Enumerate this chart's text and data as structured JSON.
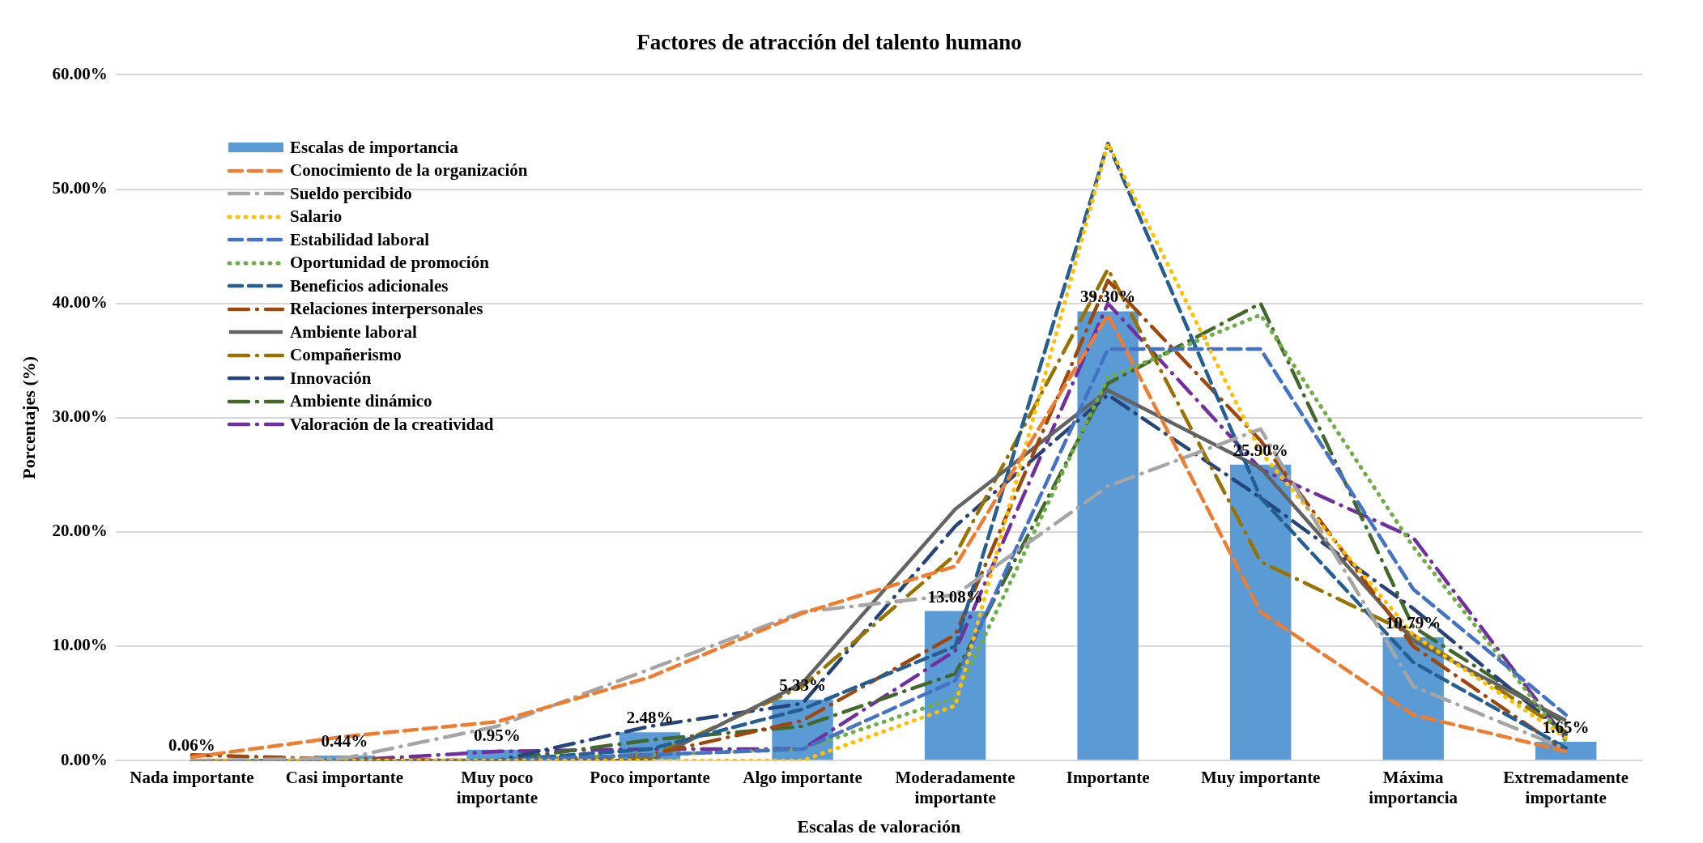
{
  "chart_data": {
    "type": "bar",
    "title": "Factores de atracción del talento humano",
    "xlabel": "Escalas de valoración",
    "ylabel": "Porcentajes (%)",
    "categories": [
      "Nada importante",
      "Casi importante",
      "Muy poco importante",
      "Poco importante",
      "Algo importante",
      "Moderadamente importante",
      "Importante",
      "Muy importante",
      "Máxima importancia",
      "Extremadamente importante"
    ],
    "ylim": [
      0,
      60
    ],
    "yticks": [
      {
        "value": 0,
        "label": "0.00%"
      },
      {
        "value": 10,
        "label": "10.00%"
      },
      {
        "value": 20,
        "label": "20.00%"
      },
      {
        "value": 30,
        "label": "30.00%"
      },
      {
        "value": 40,
        "label": "40.00%"
      },
      {
        "value": 50,
        "label": "50.00%"
      },
      {
        "value": 60,
        "label": "60.00%"
      }
    ],
    "grid": "y",
    "legend": "top left",
    "series": [
      {
        "name": "Escalas de importancia",
        "color": "#5b9bd5",
        "values": [
          0.06,
          0.44,
          0.95,
          2.48,
          5.33,
          13.08,
          39.3,
          25.9,
          10.79,
          1.65
        ],
        "value_labels": [
          "0.06%",
          "0.44%",
          "0.95%",
          "2.48%",
          "5.33%",
          "13.08%",
          "39.30%",
          "25.90%",
          "10.79%",
          "1.65%"
        ]
      },
      {
        "name": "Conocimiento de la organización",
        "type": "line",
        "line_style": "dashed",
        "color": "#ed7d31",
        "values": [
          0.3,
          2.1,
          3.4,
          7.3,
          12.9,
          17,
          39,
          13,
          4,
          0.8
        ]
      },
      {
        "name": "Sueldo percibido",
        "type": "line",
        "line_style": "dashdot",
        "color": "#a5a5a5",
        "values": [
          0,
          0.2,
          3,
          8,
          13,
          14.5,
          24,
          29,
          6.5,
          1
        ]
      },
      {
        "name": "Salario",
        "type": "line",
        "line_style": "dotted",
        "color": "#ffc000",
        "values": [
          0,
          0,
          0,
          0,
          0,
          4.8,
          54,
          27,
          11,
          2
        ]
      },
      {
        "name": "Estabilidad laboral",
        "type": "line",
        "line_style": "dashed",
        "color": "#4472c4",
        "values": [
          0,
          0,
          0,
          0.5,
          1,
          7,
          36,
          36,
          15,
          4
        ]
      },
      {
        "name": "Oportunidad de promoción",
        "type": "line",
        "line_style": "dotted",
        "color": "#70ad47",
        "values": [
          0,
          0,
          0,
          0.5,
          1,
          5.5,
          33.5,
          39,
          18.7,
          1.7
        ]
      },
      {
        "name": "Beneficios adicionales",
        "type": "line",
        "line_style": "dashed",
        "color": "#255e91",
        "values": [
          0,
          0,
          0,
          1,
          4.5,
          10,
          54,
          23,
          8.6,
          1.1
        ]
      },
      {
        "name": "Relaciones interpersonales",
        "type": "line",
        "line_style": "dashdot",
        "color": "#9e480e",
        "values": [
          0.5,
          0.1,
          0,
          0.5,
          3.5,
          11,
          42,
          28,
          10,
          0.8
        ]
      },
      {
        "name": "Ambiente laboral",
        "type": "line",
        "line_style": "solid",
        "color": "#636363",
        "values": [
          0,
          0,
          0,
          0,
          6.8,
          22,
          32.4,
          25.6,
          10.5,
          3.5
        ]
      },
      {
        "name": "Compañerismo",
        "type": "line",
        "line_style": "dashdot",
        "color": "#997300",
        "values": [
          0,
          0,
          0,
          0.3,
          6.5,
          18,
          43,
          17.4,
          11,
          2.5
        ]
      },
      {
        "name": "Innovación",
        "type": "line",
        "line_style": "dashdot",
        "color": "#264478",
        "values": [
          0,
          0,
          0,
          3,
          5,
          20.5,
          32,
          23,
          13.3,
          2.3
        ]
      },
      {
        "name": "Ambiente dinámico",
        "type": "line",
        "line_style": "dashdot",
        "color": "#43682b",
        "values": [
          0,
          0,
          0,
          1.8,
          3,
          7.6,
          33,
          40,
          11.7,
          3.2
        ]
      },
      {
        "name": "Valoración de la creatividad",
        "type": "line",
        "line_style": "dashdot",
        "color": "#7030a0",
        "values": [
          0,
          0,
          0.8,
          1,
          1,
          9.6,
          40,
          25.5,
          19.5,
          1.9
        ]
      }
    ]
  }
}
